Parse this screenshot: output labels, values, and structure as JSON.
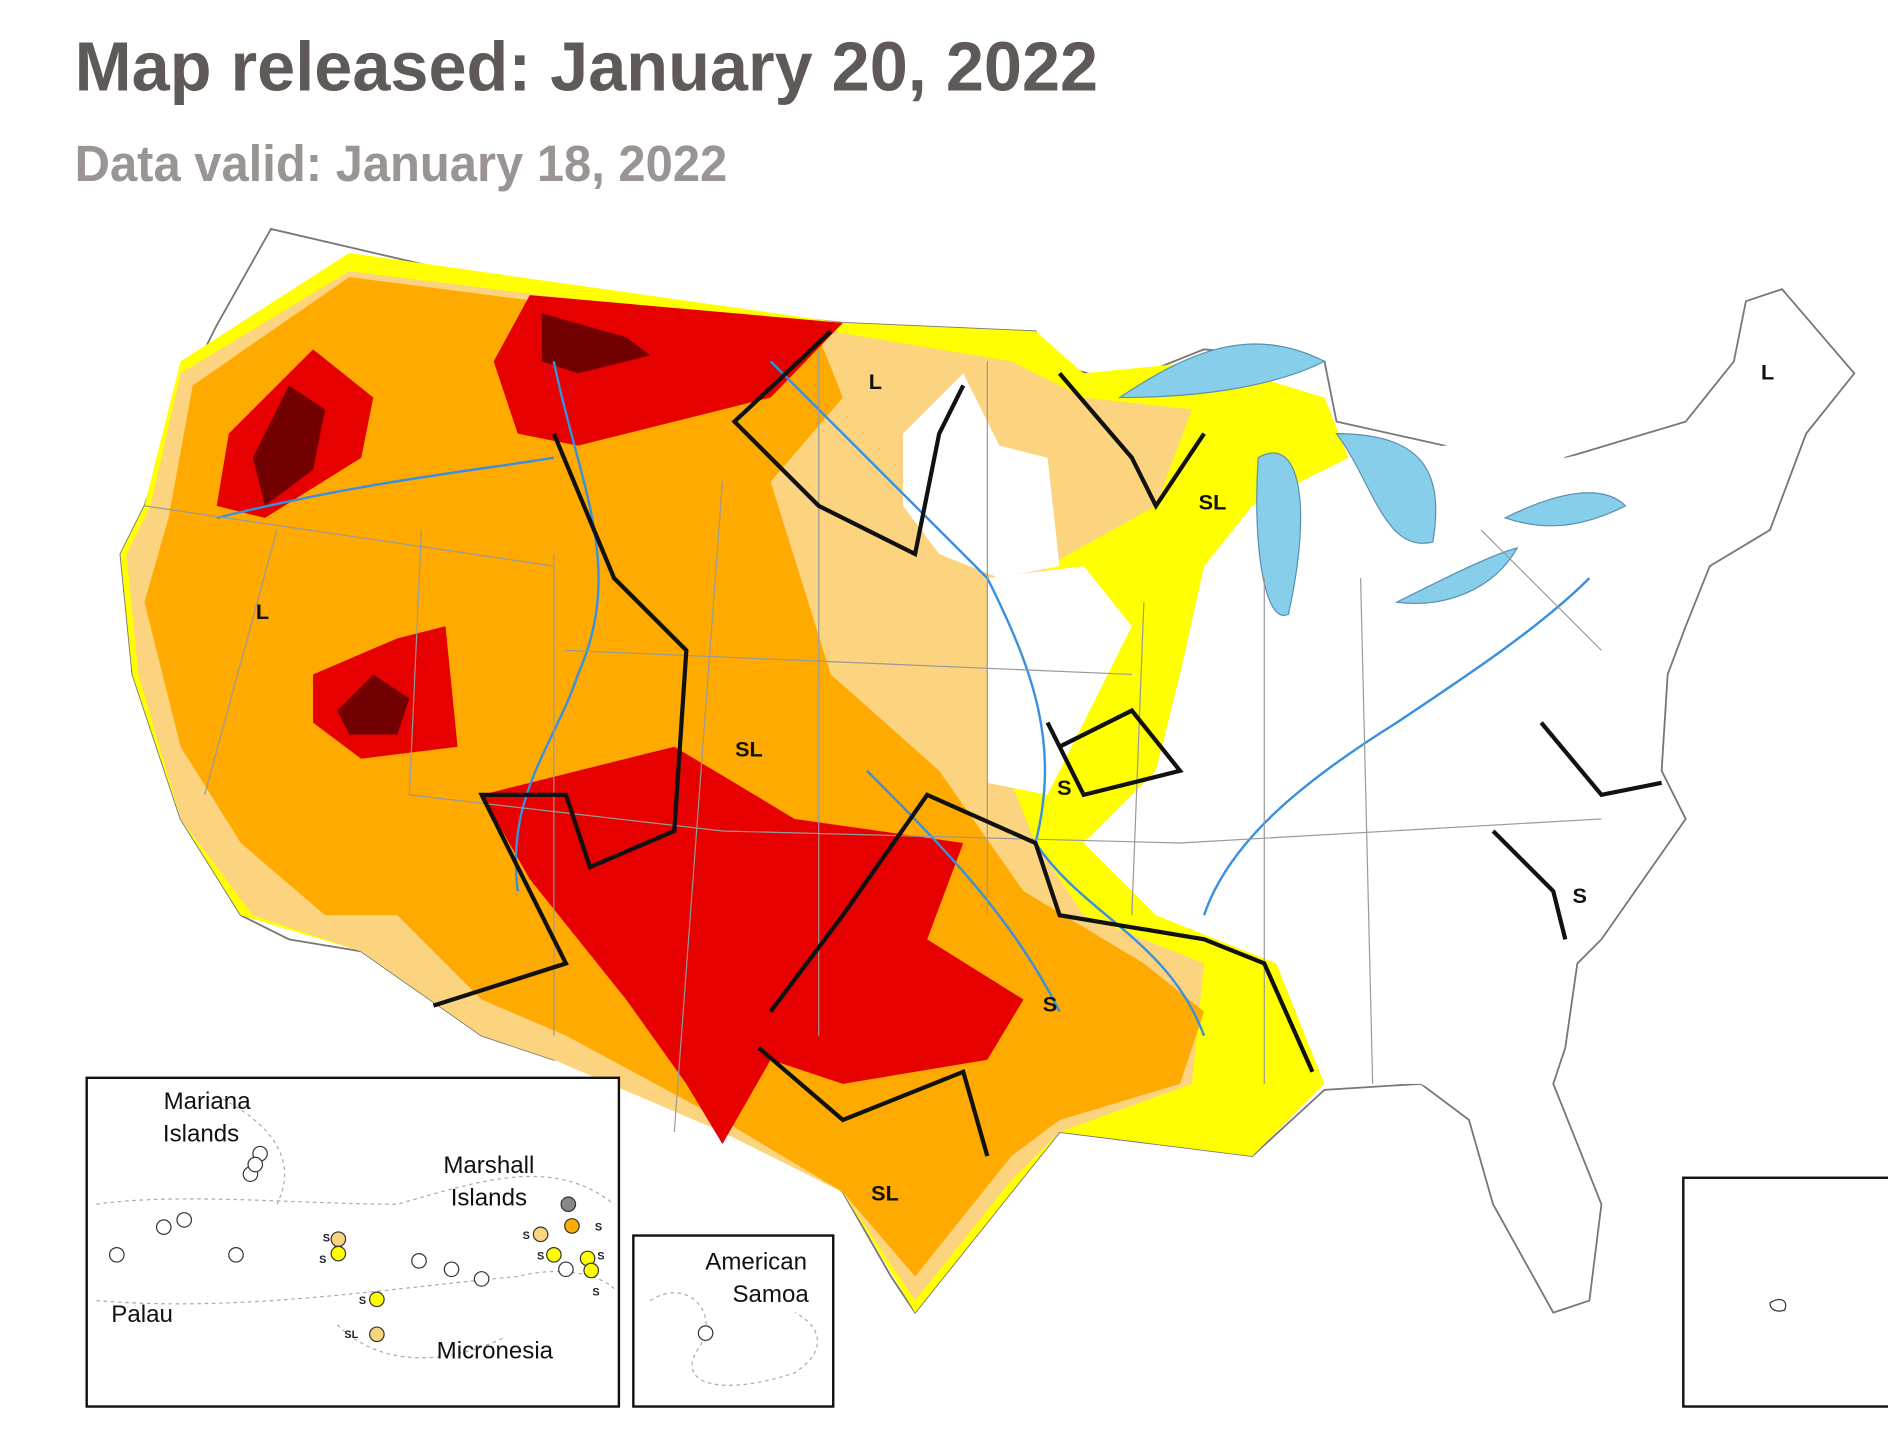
{
  "header": {
    "title": "Map released: January 20, 2022",
    "subtitle": "Data valid: January 18, 2022"
  },
  "map": {
    "impact_labels": [
      "L",
      "L",
      "SL",
      "L",
      "SL",
      "S",
      "S",
      "S",
      "SL"
    ]
  },
  "insets": {
    "pacific": {
      "mariana": {
        "lines": [
          "Mariana",
          "Islands"
        ]
      },
      "marshall": {
        "lines": [
          "Marshall",
          "Islands"
        ]
      },
      "palau": "Palau",
      "micronesia": "Micronesia",
      "status_labels": [
        "S",
        "S",
        "S",
        "SL",
        "S",
        "S",
        "S",
        "S",
        "S"
      ]
    },
    "samoa": {
      "lines": [
        "American",
        "Samoa"
      ]
    }
  }
}
